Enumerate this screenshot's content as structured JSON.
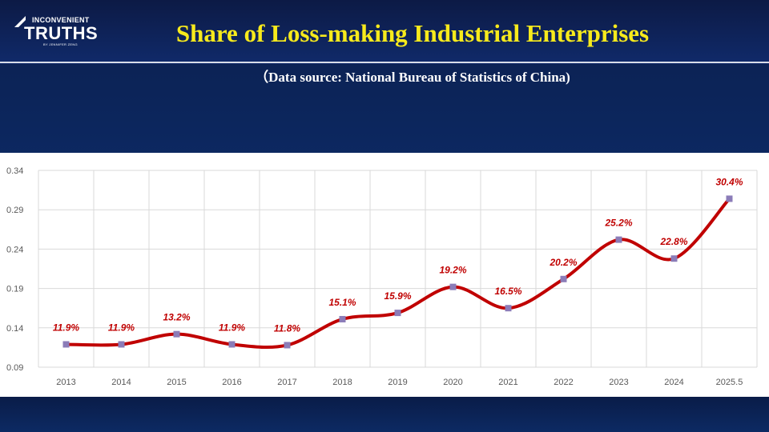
{
  "logo": {
    "line1": "INCONVENIENT",
    "line2": "TRUTHS",
    "line3": "BY JENNIFER ZENG"
  },
  "header": {
    "title": "Share of Loss-making Industrial Enterprises",
    "subtitle": "（Data source: National Bureau of Statistics of China)"
  },
  "colors": {
    "title": "#f7ea1c",
    "line": "#c00000",
    "marker": "#8b7cb8",
    "data_label": "#c00000",
    "background": "#0d2a66"
  },
  "chart_data": {
    "type": "line",
    "categories": [
      "2013",
      "2014",
      "2015",
      "2016",
      "2017",
      "2018",
      "2019",
      "2020",
      "2021",
      "2022",
      "2023",
      "2024",
      "2025.5"
    ],
    "values": [
      0.119,
      0.119,
      0.132,
      0.119,
      0.118,
      0.151,
      0.159,
      0.192,
      0.165,
      0.202,
      0.252,
      0.228,
      0.304
    ],
    "data_labels": [
      "11.9%",
      "11.9%",
      "13.2%",
      "11.9%",
      "11.8%",
      "15.1%",
      "15.9%",
      "19.2%",
      "16.5%",
      "20.2%",
      "25.2%",
      "22.8%",
      "30.4%"
    ],
    "y_ticks": [
      "0.09",
      "0.14",
      "0.19",
      "0.24",
      "0.29",
      "0.34"
    ],
    "ylim": [
      0.09,
      0.34
    ],
    "grid": true,
    "smooth": true,
    "legend": "none"
  }
}
